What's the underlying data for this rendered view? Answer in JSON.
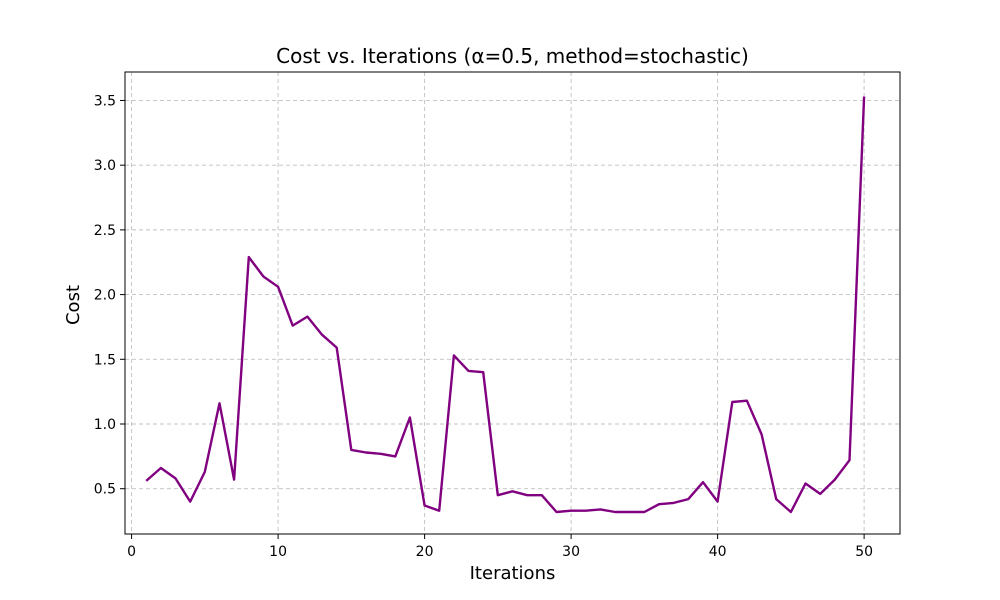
{
  "chart_data": {
    "type": "line",
    "title": "Cost vs. Iterations (α=0.5, method=stochastic)",
    "xlabel": "Iterations",
    "ylabel": "Cost",
    "xlim": [
      -0.45,
      52.45
    ],
    "ylim": [
      0.15,
      3.72
    ],
    "xticks": [
      0,
      10,
      20,
      30,
      40,
      50
    ],
    "yticks": [
      0.5,
      1.0,
      1.5,
      2.0,
      2.5,
      3.0,
      3.5
    ],
    "xtick_labels": [
      "0",
      "10",
      "20",
      "30",
      "40",
      "50"
    ],
    "ytick_labels": [
      "0.5",
      "1.0",
      "1.5",
      "2.0",
      "2.5",
      "3.0",
      "3.5"
    ],
    "grid": true,
    "line_color": "#800080",
    "series": [
      {
        "x": [
          1,
          2,
          3,
          4,
          5,
          6,
          7,
          8,
          9,
          10,
          11,
          12,
          13,
          14,
          15,
          16,
          17,
          18,
          19,
          20,
          21,
          22,
          23,
          24,
          25,
          26,
          27,
          28,
          29,
          30,
          31,
          32,
          33,
          34,
          35,
          36,
          37,
          38,
          39,
          40,
          41,
          42,
          43,
          44,
          45,
          46,
          47,
          48,
          49,
          50
        ],
        "values": [
          0.56,
          0.66,
          0.58,
          0.4,
          0.63,
          1.16,
          0.57,
          2.29,
          2.14,
          2.06,
          1.76,
          1.83,
          1.69,
          1.59,
          0.8,
          0.78,
          0.77,
          0.75,
          1.05,
          0.37,
          0.33,
          1.53,
          1.41,
          1.4,
          0.45,
          0.48,
          0.45,
          0.45,
          0.32,
          0.33,
          0.33,
          0.34,
          0.32,
          0.32,
          0.32,
          0.38,
          0.39,
          0.42,
          0.55,
          0.4,
          1.17,
          1.18,
          0.92,
          0.42,
          0.32,
          0.54,
          0.46,
          0.57,
          0.72,
          3.53
        ]
      }
    ]
  }
}
